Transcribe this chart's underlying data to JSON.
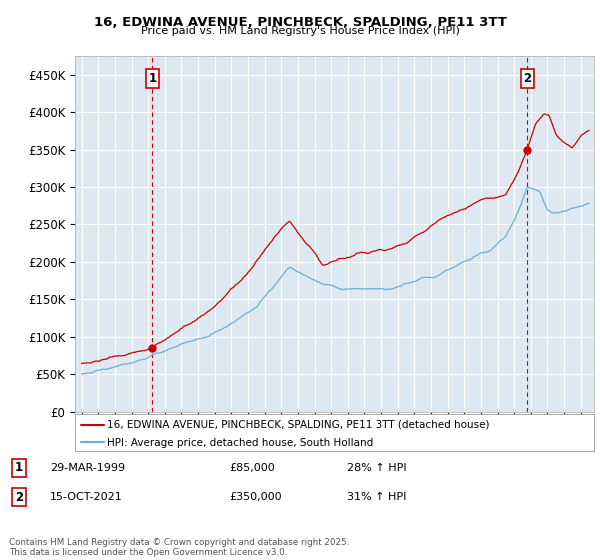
{
  "title": "16, EDWINA AVENUE, PINCHBECK, SPALDING, PE11 3TT",
  "subtitle": "Price paid vs. HM Land Registry's House Price Index (HPI)",
  "background_color": "#ffffff",
  "plot_bg_color": "#dde8f0",
  "grid_color": "#ffffff",
  "legend1": "16, EDWINA AVENUE, PINCHBECK, SPALDING, PE11 3TT (detached house)",
  "legend2": "HPI: Average price, detached house, South Holland",
  "footer": "Contains HM Land Registry data © Crown copyright and database right 2025.\nThis data is licensed under the Open Government Licence v3.0.",
  "hpi_color": "#6baed6",
  "price_color": "#cc0000",
  "vline_color": "#cc0000",
  "ylim": [
    0,
    475000
  ],
  "yticks": [
    0,
    50000,
    100000,
    150000,
    200000,
    250000,
    300000,
    350000,
    400000,
    450000
  ],
  "t1": 1999.25,
  "t2": 2021.79,
  "price1": 85000,
  "price2": 350000
}
